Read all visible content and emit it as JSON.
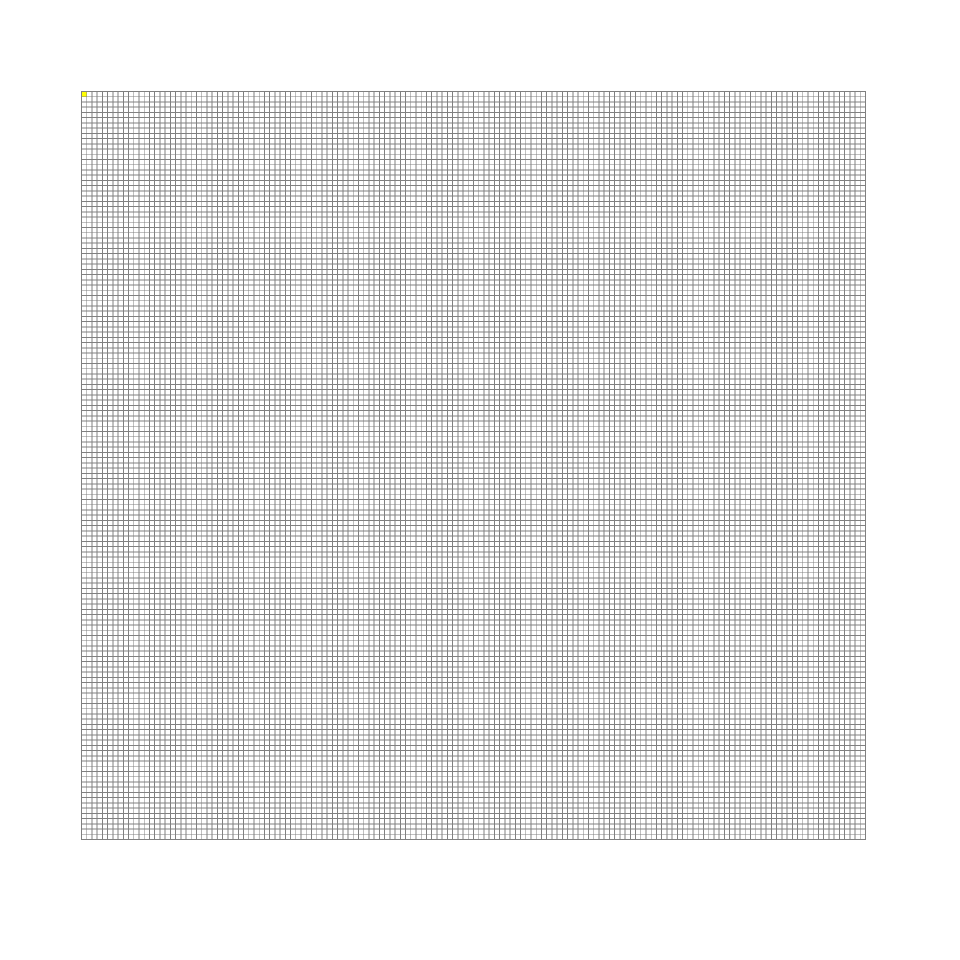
{
  "board": {
    "columns": 150,
    "rows": 143,
    "background_color": "#ffffff",
    "grid_line_color": "#808080",
    "highlighted_cells": [
      {
        "col": 0,
        "row": 0,
        "color": "#ffff00"
      }
    ]
  }
}
